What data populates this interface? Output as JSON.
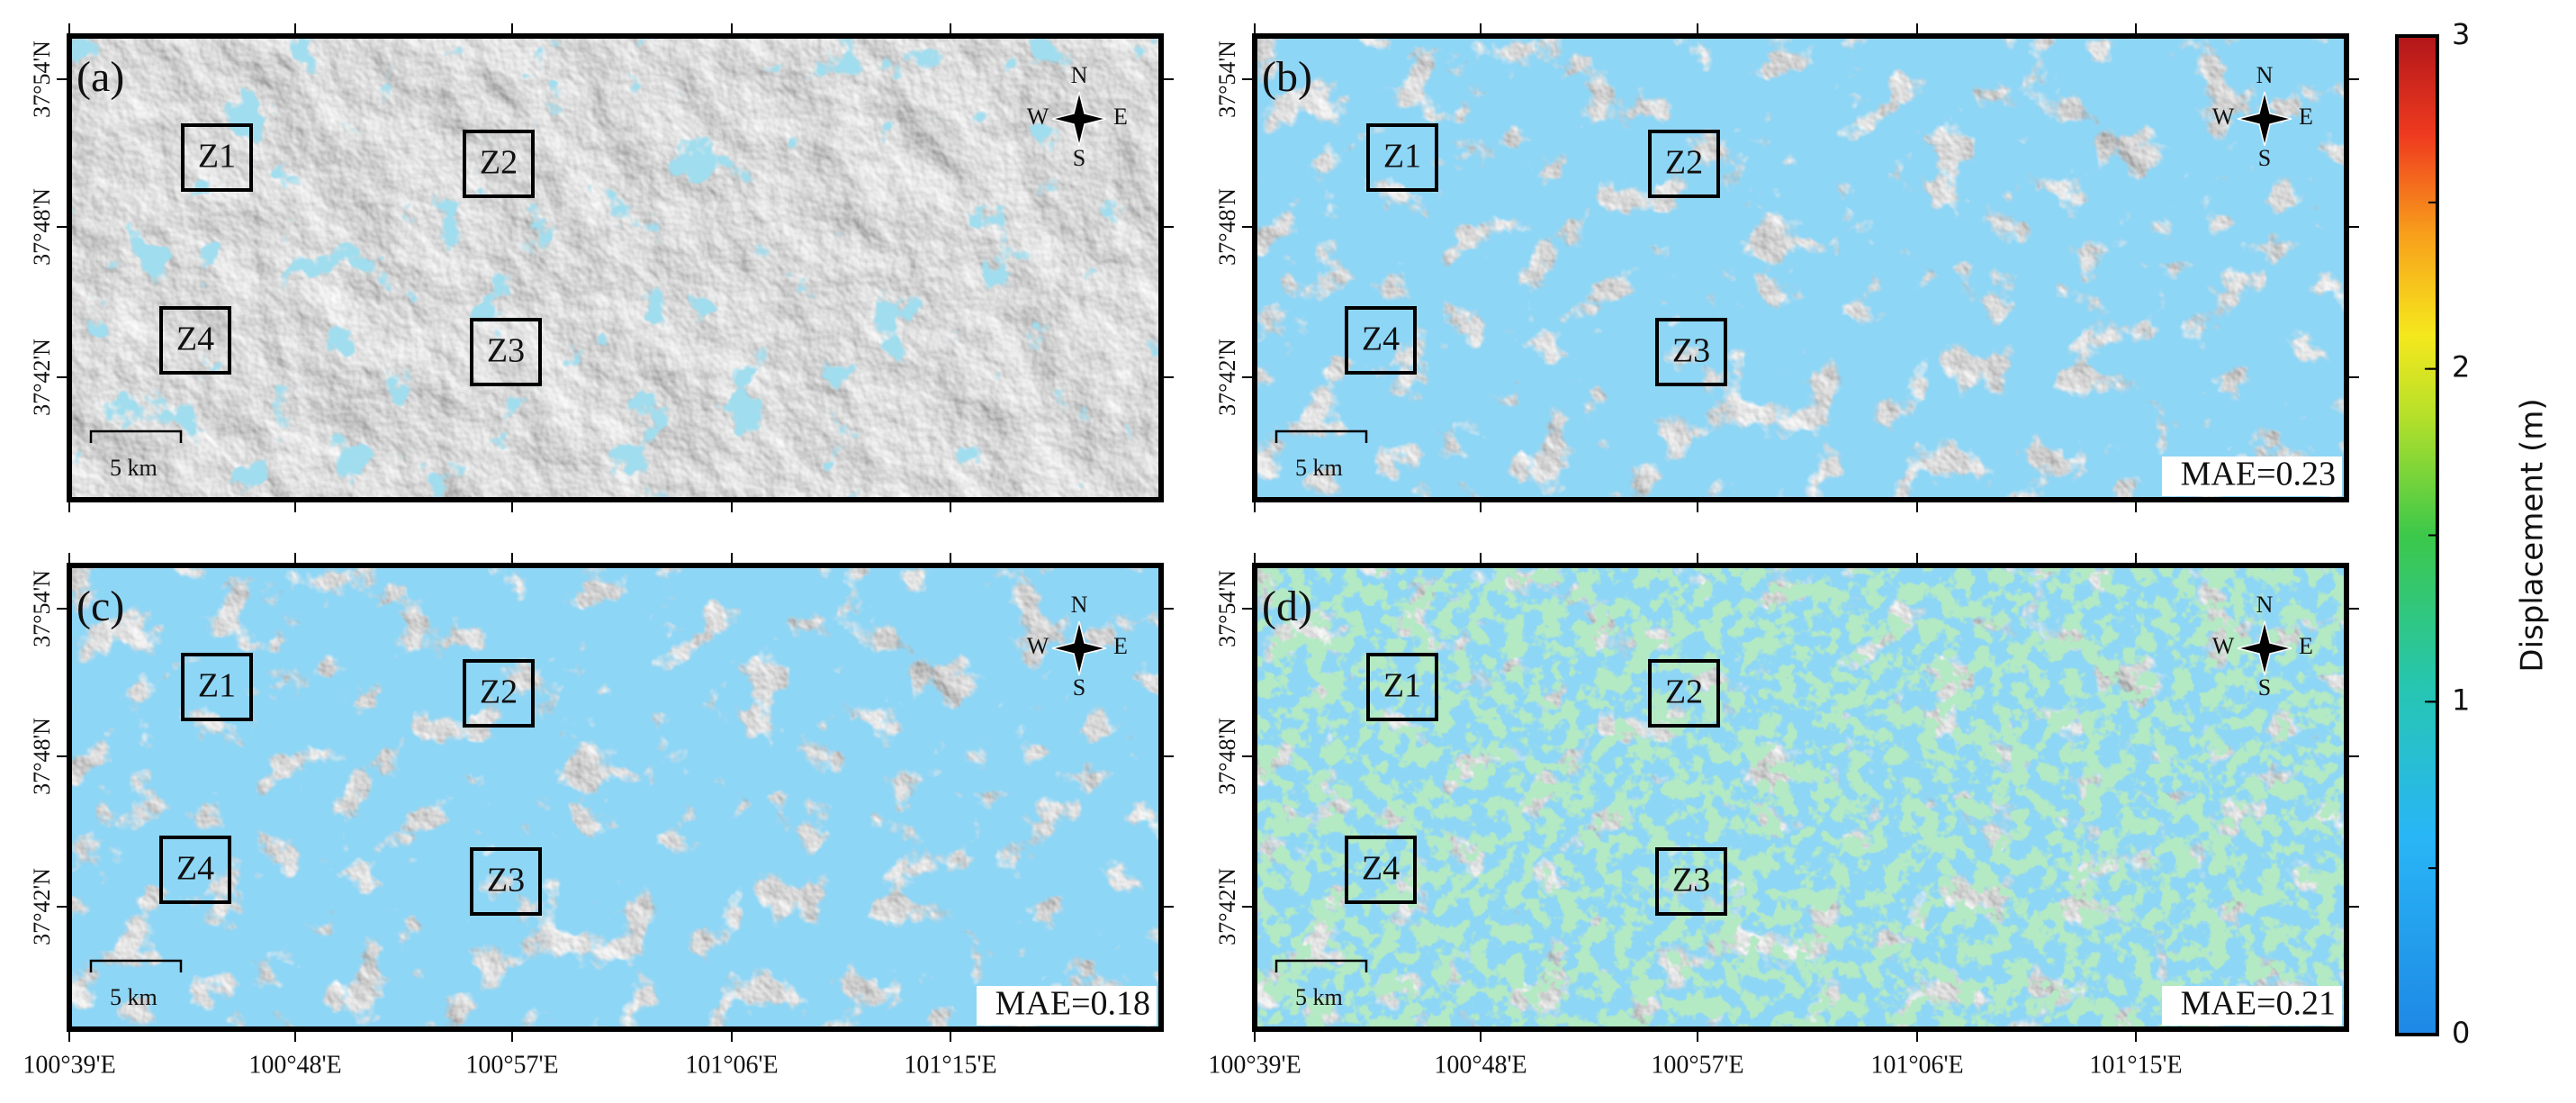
{
  "panels": [
    {
      "label": "(a)",
      "zones": [
        "Z1",
        "Z2",
        "Z3",
        "Z4"
      ],
      "compass": {
        "n": "N",
        "e": "E",
        "s": "S",
        "w": "W"
      },
      "scale_bar": "5 km"
    },
    {
      "label": "(b)",
      "zones": [
        "Z1",
        "Z2",
        "Z3",
        "Z4"
      ],
      "compass": {
        "n": "N",
        "e": "E",
        "s": "S",
        "w": "W"
      },
      "scale_bar": "5 km",
      "mae": "MAE=0.23"
    },
    {
      "label": "(c)",
      "zones": [
        "Z1",
        "Z2",
        "Z3",
        "Z4"
      ],
      "compass": {
        "n": "N",
        "e": "E",
        "s": "S",
        "w": "W"
      },
      "scale_bar": "5 km",
      "mae": "MAE=0.18"
    },
    {
      "label": "(d)",
      "zones": [
        "Z1",
        "Z2",
        "Z3",
        "Z4"
      ],
      "compass": {
        "n": "N",
        "e": "E",
        "s": "S",
        "w": "W"
      },
      "scale_bar": "5 km",
      "mae": "MAE=0.21"
    }
  ],
  "y_axis_labels": [
    "37°54'N",
    "37°48'N",
    "37°42'N"
  ],
  "x_axis_labels": [
    "100°39'E",
    "100°48'E",
    "100°57'E",
    "101°06'E",
    "101°15'E"
  ],
  "colorbar": {
    "label": "Displacement (m)",
    "lim": [
      0,
      3
    ],
    "ticks": [
      0,
      1,
      2,
      3
    ]
  }
}
